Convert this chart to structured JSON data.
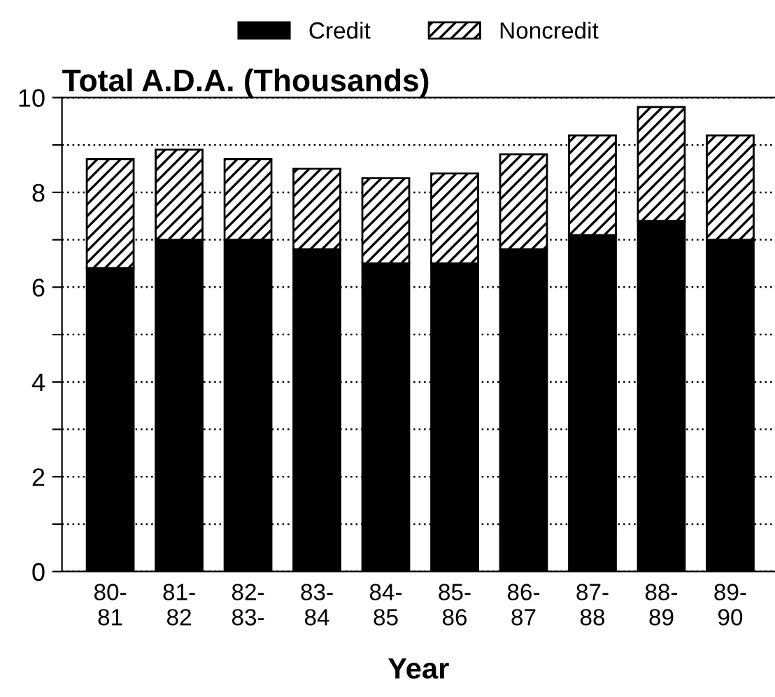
{
  "chart_data": {
    "type": "bar",
    "stacked": true,
    "title": "Total A.D.A. (Thousands)",
    "xlabel": "Year",
    "categories": [
      "80-\n81",
      "81-\n82",
      "82-\n83-",
      "83-\n84",
      "84-\n85",
      "85-\n86",
      "86-\n87",
      "87-\n88",
      "88-\n89",
      "89-\n90"
    ],
    "series": [
      {
        "name": "Credit",
        "color": "#000000",
        "values": [
          6.4,
          7.0,
          7.0,
          6.8,
          6.5,
          6.5,
          6.8,
          7.1,
          7.4,
          7.0
        ]
      },
      {
        "name": "Noncredit",
        "color": "#000000",
        "values": [
          2.3,
          1.9,
          1.7,
          1.7,
          1.8,
          1.9,
          2.0,
          2.1,
          2.4,
          2.2
        ]
      }
    ],
    "ylim": [
      0,
      10
    ],
    "yticks": [
      0,
      {
        "value": 1,
        "label": null
      },
      2,
      {
        "value": 3,
        "label": null
      },
      4,
      {
        "value": 5,
        "label": null
      },
      6,
      {
        "value": 7,
        "label": null
      },
      8,
      {
        "value": 9,
        "label": null
      },
      10
    ],
    "grid": "y",
    "legend": "top"
  }
}
